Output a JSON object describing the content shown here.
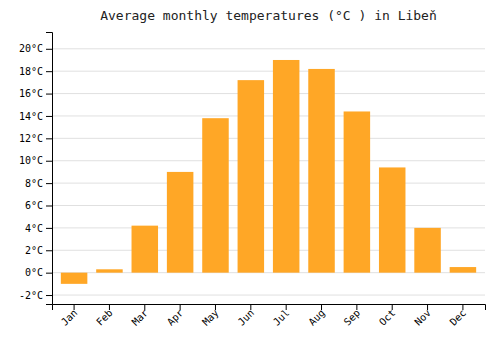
{
  "chart_data": {
    "type": "bar",
    "title": "Average monthly temperatures (°C ) in Libeň",
    "categories": [
      "Jan",
      "Feb",
      "Mar",
      "Apr",
      "May",
      "Jun",
      "Jul",
      "Aug",
      "Sep",
      "Oct",
      "Nov",
      "Dec"
    ],
    "values": [
      -1.0,
      0.3,
      4.2,
      9.0,
      13.8,
      17.2,
      19.0,
      18.2,
      14.4,
      9.4,
      4.0,
      0.5
    ],
    "color": "#FFA726",
    "ylim": [
      -2.8,
      21.5
    ],
    "yticks": [
      {
        "value": -2,
        "label": "-2°C"
      },
      {
        "value": 0,
        "label": "0°C"
      },
      {
        "value": 2,
        "label": "2°C"
      },
      {
        "value": 4,
        "label": "4°C"
      },
      {
        "value": 6,
        "label": "6°C"
      },
      {
        "value": 8,
        "label": "8°C"
      },
      {
        "value": 10,
        "label": "10°C"
      },
      {
        "value": 12,
        "label": "12°C"
      },
      {
        "value": 14,
        "label": "14°C"
      },
      {
        "value": 16,
        "label": "16°C"
      },
      {
        "value": 18,
        "label": "18°C"
      },
      {
        "value": 20,
        "label": "20°C"
      }
    ],
    "grid": true
  }
}
